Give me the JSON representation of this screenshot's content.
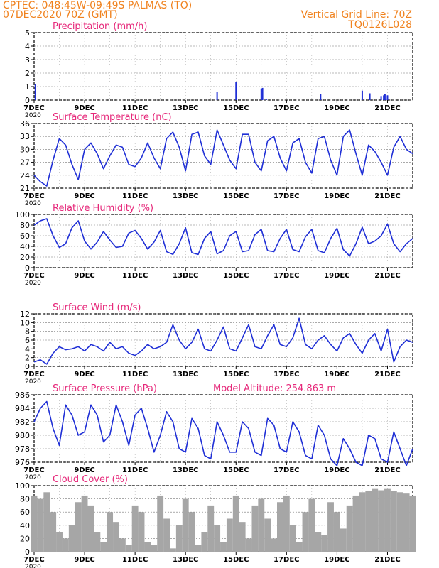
{
  "header": {
    "line1": "CPTEC:   048:45W-09:49S   PALMAS (TO)",
    "line2": "07DEC2020 70Z (GMT)",
    "grid_line": "Vertical Grid Line: 70Z",
    "code": "TQ0126L028"
  },
  "colors": {
    "header": "#f0821e",
    "title": "#e6287a",
    "series": "#1f2fd6",
    "cloud": "#a6a6a6",
    "axis": "#000000"
  },
  "x_axis": {
    "start_day": 7,
    "end_day": 22,
    "tick_labels": [
      {
        "day": 7,
        "label": "7DEC"
      },
      {
        "day": 9,
        "label": "9DEC"
      },
      {
        "day": 11,
        "label": "11DEC"
      },
      {
        "day": 13,
        "label": "13DEC"
      },
      {
        "day": 15,
        "label": "15DEC"
      },
      {
        "day": 17,
        "label": "17DEC"
      },
      {
        "day": 19,
        "label": "19DEC"
      },
      {
        "day": 21,
        "label": "21DEC"
      }
    ],
    "extra_label": "2020"
  },
  "chart_data": [
    {
      "type": "bar",
      "title": "Precipitation (mm/h)",
      "ylim": [
        0,
        5
      ],
      "yticks": [
        0,
        1,
        2,
        3,
        4,
        5
      ],
      "grid": true,
      "x": [
        7.05,
        14.25,
        15.0,
        16.0,
        16.05,
        16.2,
        18.35,
        20.0,
        20.3,
        20.75,
        20.85,
        20.9,
        21.0
      ],
      "values": [
        1.2,
        0.6,
        1.35,
        0.85,
        0.9,
        0.1,
        0.45,
        0.7,
        0.5,
        0.3,
        0.35,
        0.45,
        0.35
      ]
    },
    {
      "type": "line",
      "title": "Surface Temperature (nC)",
      "ylim": [
        21,
        36
      ],
      "yticks": [
        21,
        24,
        27,
        30,
        33,
        36
      ],
      "x": [
        7.0,
        7.25,
        7.5,
        7.75,
        8.0,
        8.25,
        8.5,
        8.75,
        9.0,
        9.25,
        9.5,
        9.75,
        10.0,
        10.25,
        10.5,
        10.75,
        11.0,
        11.25,
        11.5,
        11.75,
        12.0,
        12.25,
        12.5,
        12.75,
        13.0,
        13.25,
        13.5,
        13.75,
        14.0,
        14.25,
        14.5,
        14.75,
        15.0,
        15.25,
        15.5,
        15.75,
        16.0,
        16.25,
        16.5,
        16.75,
        17.0,
        17.25,
        17.5,
        17.75,
        18.0,
        18.25,
        18.5,
        18.75,
        19.0,
        19.25,
        19.5,
        19.75,
        20.0,
        20.25,
        20.5,
        20.75,
        21.0,
        21.25,
        21.5,
        21.75,
        22.0
      ],
      "values": [
        24.0,
        22.5,
        21.5,
        27.5,
        32.5,
        31.0,
        26.5,
        23.0,
        30.0,
        31.5,
        29.0,
        25.5,
        28.5,
        31.0,
        30.5,
        26.5,
        26.0,
        28.0,
        31.5,
        28.0,
        25.5,
        32.5,
        34.0,
        30.5,
        25.0,
        33.5,
        34.0,
        28.5,
        26.5,
        34.5,
        31.0,
        27.5,
        25.5,
        33.5,
        33.5,
        27.0,
        25.0,
        32.0,
        33.0,
        28.0,
        25.0,
        31.5,
        32.5,
        27.0,
        24.5,
        32.5,
        33.0,
        27.5,
        24.0,
        33.0,
        34.5,
        29.0,
        24.0,
        31.0,
        29.5,
        27.0,
        24.0,
        30.5,
        33.0,
        30.0,
        29.0
      ]
    },
    {
      "type": "line",
      "title": "Relative Humidity (%)",
      "ylim": [
        0,
        100
      ],
      "yticks": [
        0,
        20,
        40,
        60,
        80,
        100
      ],
      "x": [
        7.0,
        7.25,
        7.5,
        7.75,
        8.0,
        8.25,
        8.5,
        8.75,
        9.0,
        9.25,
        9.5,
        9.75,
        10.0,
        10.25,
        10.5,
        10.75,
        11.0,
        11.25,
        11.5,
        11.75,
        12.0,
        12.25,
        12.5,
        12.75,
        13.0,
        13.25,
        13.5,
        13.75,
        14.0,
        14.25,
        14.5,
        14.75,
        15.0,
        15.25,
        15.5,
        15.75,
        16.0,
        16.25,
        16.5,
        16.75,
        17.0,
        17.25,
        17.5,
        17.75,
        18.0,
        18.25,
        18.5,
        18.75,
        19.0,
        19.25,
        19.5,
        19.75,
        20.0,
        20.25,
        20.5,
        20.75,
        21.0,
        21.25,
        21.5,
        21.75,
        22.0
      ],
      "values": [
        80.0,
        88.0,
        92.0,
        60.0,
        38.0,
        45.0,
        75.0,
        88.0,
        50.0,
        35.0,
        48.0,
        68.0,
        52.0,
        38.0,
        40.0,
        65.0,
        70.0,
        55.0,
        35.0,
        48.0,
        70.0,
        30.0,
        25.0,
        45.0,
        75.0,
        28.0,
        25.0,
        55.0,
        68.0,
        26.0,
        32.0,
        60.0,
        68.0,
        30.0,
        32.0,
        62.0,
        72.0,
        32.0,
        30.0,
        55.0,
        72.0,
        34.0,
        30.0,
        58.0,
        72.0,
        32.0,
        28.0,
        55.0,
        74.0,
        34.0,
        22.0,
        45.0,
        76.0,
        45.0,
        50.0,
        60.0,
        82.0,
        45.0,
        30.0,
        45.0,
        55.0
      ]
    },
    {
      "type": "line",
      "title": "Surface Wind (m/s)",
      "ylim": [
        0,
        12
      ],
      "yticks": [
        0,
        2,
        4,
        6,
        8,
        10,
        12
      ],
      "x": [
        7.0,
        7.25,
        7.5,
        7.75,
        8.0,
        8.25,
        8.5,
        8.75,
        9.0,
        9.25,
        9.5,
        9.75,
        10.0,
        10.25,
        10.5,
        10.75,
        11.0,
        11.25,
        11.5,
        11.75,
        12.0,
        12.25,
        12.5,
        12.75,
        13.0,
        13.25,
        13.5,
        13.75,
        14.0,
        14.25,
        14.5,
        14.75,
        15.0,
        15.25,
        15.5,
        15.75,
        16.0,
        16.25,
        16.5,
        16.75,
        17.0,
        17.25,
        17.5,
        17.75,
        18.0,
        18.25,
        18.5,
        18.75,
        19.0,
        19.25,
        19.5,
        19.75,
        20.0,
        20.25,
        20.5,
        20.75,
        21.0,
        21.25,
        21.5,
        21.75,
        22.0
      ],
      "values": [
        1.0,
        1.5,
        0.5,
        3.0,
        4.5,
        3.8,
        4.0,
        4.5,
        3.5,
        5.0,
        4.5,
        3.5,
        5.5,
        4.0,
        4.5,
        3.0,
        2.5,
        3.5,
        5.0,
        4.0,
        4.5,
        5.5,
        9.5,
        6.0,
        4.0,
        5.5,
        8.5,
        4.0,
        3.5,
        6.0,
        9.0,
        4.0,
        3.5,
        6.5,
        9.5,
        4.5,
        4.0,
        7.0,
        9.5,
        5.0,
        4.5,
        6.5,
        11.0,
        5.0,
        4.0,
        6.0,
        7.0,
        5.0,
        3.5,
        6.5,
        7.5,
        5.0,
        3.0,
        6.0,
        7.5,
        3.5,
        8.5,
        1.0,
        4.5,
        6.0,
        5.5
      ]
    },
    {
      "type": "line",
      "title": "Surface Pressure (hPa)",
      "annotation": "Model Altitude: 254.863 m",
      "ylim": [
        976,
        986
      ],
      "yticks": [
        976,
        978,
        980,
        982,
        984,
        986
      ],
      "x": [
        7.0,
        7.25,
        7.5,
        7.75,
        8.0,
        8.25,
        8.5,
        8.75,
        9.0,
        9.25,
        9.5,
        9.75,
        10.0,
        10.25,
        10.5,
        10.75,
        11.0,
        11.25,
        11.5,
        11.75,
        12.0,
        12.25,
        12.5,
        12.75,
        13.0,
        13.25,
        13.5,
        13.75,
        14.0,
        14.25,
        14.5,
        14.75,
        15.0,
        15.25,
        15.5,
        15.75,
        16.0,
        16.25,
        16.5,
        16.75,
        17.0,
        17.25,
        17.5,
        17.75,
        18.0,
        18.25,
        18.5,
        18.75,
        19.0,
        19.25,
        19.5,
        19.75,
        20.0,
        20.25,
        20.5,
        20.75,
        21.0,
        21.25,
        21.5,
        21.75,
        22.0
      ],
      "values": [
        982.0,
        984.0,
        985.0,
        981.0,
        978.5,
        984.5,
        983.0,
        980.0,
        980.5,
        984.5,
        983.0,
        979.0,
        980.0,
        984.5,
        982.0,
        978.5,
        983.0,
        984.0,
        981.0,
        977.5,
        980.0,
        983.5,
        982.0,
        978.0,
        977.5,
        982.5,
        981.0,
        977.0,
        976.5,
        982.0,
        980.0,
        977.5,
        977.5,
        982.0,
        981.0,
        977.5,
        977.0,
        982.5,
        981.5,
        978.0,
        977.5,
        982.0,
        980.5,
        977.0,
        976.5,
        981.5,
        980.0,
        976.5,
        975.5,
        979.5,
        978.0,
        976.0,
        975.5,
        980.0,
        979.5,
        976.5,
        976.0,
        980.5,
        978.0,
        975.5,
        978.0
      ]
    },
    {
      "type": "bar",
      "title": "Cloud Cover (%)",
      "ylim": [
        0,
        100
      ],
      "yticks": [
        0,
        20,
        40,
        60,
        80,
        100
      ],
      "x": [
        7.0,
        7.25,
        7.5,
        7.75,
        8.0,
        8.25,
        8.5,
        8.75,
        9.0,
        9.25,
        9.5,
        9.75,
        10.0,
        10.25,
        10.5,
        10.75,
        11.0,
        11.25,
        11.5,
        11.75,
        12.0,
        12.25,
        12.5,
        12.75,
        13.0,
        13.25,
        13.5,
        13.75,
        14.0,
        14.25,
        14.5,
        14.75,
        15.0,
        15.25,
        15.5,
        15.75,
        16.0,
        16.25,
        16.5,
        16.75,
        17.0,
        17.25,
        17.5,
        17.75,
        18.0,
        18.25,
        18.5,
        18.75,
        19.0,
        19.25,
        19.5,
        19.75,
        20.0,
        20.25,
        20.5,
        20.75,
        21.0,
        21.25,
        21.5,
        21.75,
        22.0
      ],
      "values": [
        85,
        80,
        90,
        60,
        30,
        20,
        40,
        75,
        85,
        70,
        30,
        15,
        60,
        45,
        20,
        10,
        70,
        60,
        15,
        10,
        85,
        50,
        5,
        40,
        80,
        60,
        10,
        30,
        70,
        40,
        15,
        50,
        85,
        45,
        20,
        70,
        80,
        50,
        20,
        75,
        85,
        40,
        15,
        60,
        80,
        30,
        25,
        75,
        60,
        35,
        70,
        85,
        90,
        92,
        95,
        93,
        95,
        92,
        90,
        88,
        85
      ]
    }
  ]
}
